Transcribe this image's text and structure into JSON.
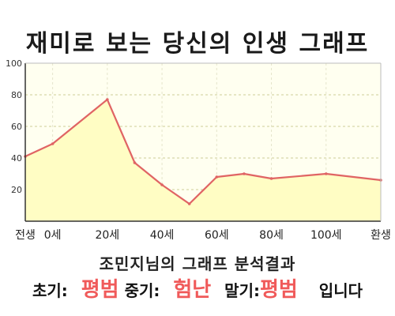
{
  "title": "재미로 보는 당신의 인생 그래프",
  "subtitle": "조민지님의 그래프 분석결과",
  "summary": {
    "early_label": "초기:",
    "early_value": "평범",
    "mid_label": "중기:",
    "mid_value": "험난",
    "late_label": "말기:",
    "late_value": "평범",
    "suffix": "입니다"
  },
  "colors": {
    "line": "#e06464",
    "fill": "#fffdc4",
    "plot_background": "#fffff0",
    "highlight": "#f05a5a"
  },
  "chart_data": {
    "type": "area",
    "title": "재미로 보는 당신의 인생 그래프",
    "xlabel": "",
    "ylabel": "",
    "x_tick_labels": [
      "전생",
      "0세",
      "20세",
      "40세",
      "60세",
      "80세",
      "100세",
      "환생"
    ],
    "y_ticks": [
      20,
      40,
      60,
      80,
      100
    ],
    "ylim": [
      0,
      100
    ],
    "grid": true,
    "points": [
      {
        "x": "전생",
        "y": 41
      },
      {
        "x": "0세",
        "y": 49
      },
      {
        "x": "20세",
        "y": 77
      },
      {
        "x": "30세",
        "y": 37
      },
      {
        "x": "40세",
        "y": 23
      },
      {
        "x": "50세",
        "y": 11
      },
      {
        "x": "60세",
        "y": 28
      },
      {
        "x": "70세",
        "y": 30
      },
      {
        "x": "80세",
        "y": 27
      },
      {
        "x": "100세",
        "y": 30
      },
      {
        "x": "환생",
        "y": 26
      }
    ]
  }
}
